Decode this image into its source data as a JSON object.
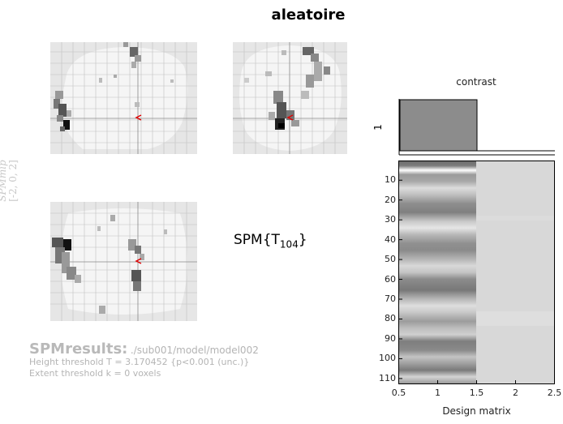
{
  "figure": {
    "title": "aleatoire",
    "statistic_label": "SPM{T",
    "statistic_df": "104",
    "statistic_close": "}",
    "mip_label": "SPMmip",
    "mip_coords": "[-2, 0, 2]"
  },
  "results": {
    "heading": "SPMresults:",
    "path": "./sub001/model/model002",
    "height_threshold": "Height threshold T = 3.170452  {p<0.001 (unc.)}",
    "extent_threshold": "Extent threshold k = 0 voxels"
  },
  "contrast_panel": {
    "title": "contrast",
    "row_label": "1"
  },
  "design_matrix": {
    "xlabel": "Design matrix",
    "x_ticks": [
      "0.5",
      "1",
      "1.5",
      "2",
      "2.5"
    ],
    "y_ticks": [
      "10",
      "20",
      "30",
      "40",
      "50",
      "60",
      "70",
      "80",
      "90",
      "100",
      "110"
    ]
  },
  "colors": {
    "mip_background": "#e6e6e6",
    "brain_mask": "#f5f5f5",
    "cursor": "#e00000",
    "contrast_bar": "#8c8c8c"
  }
}
